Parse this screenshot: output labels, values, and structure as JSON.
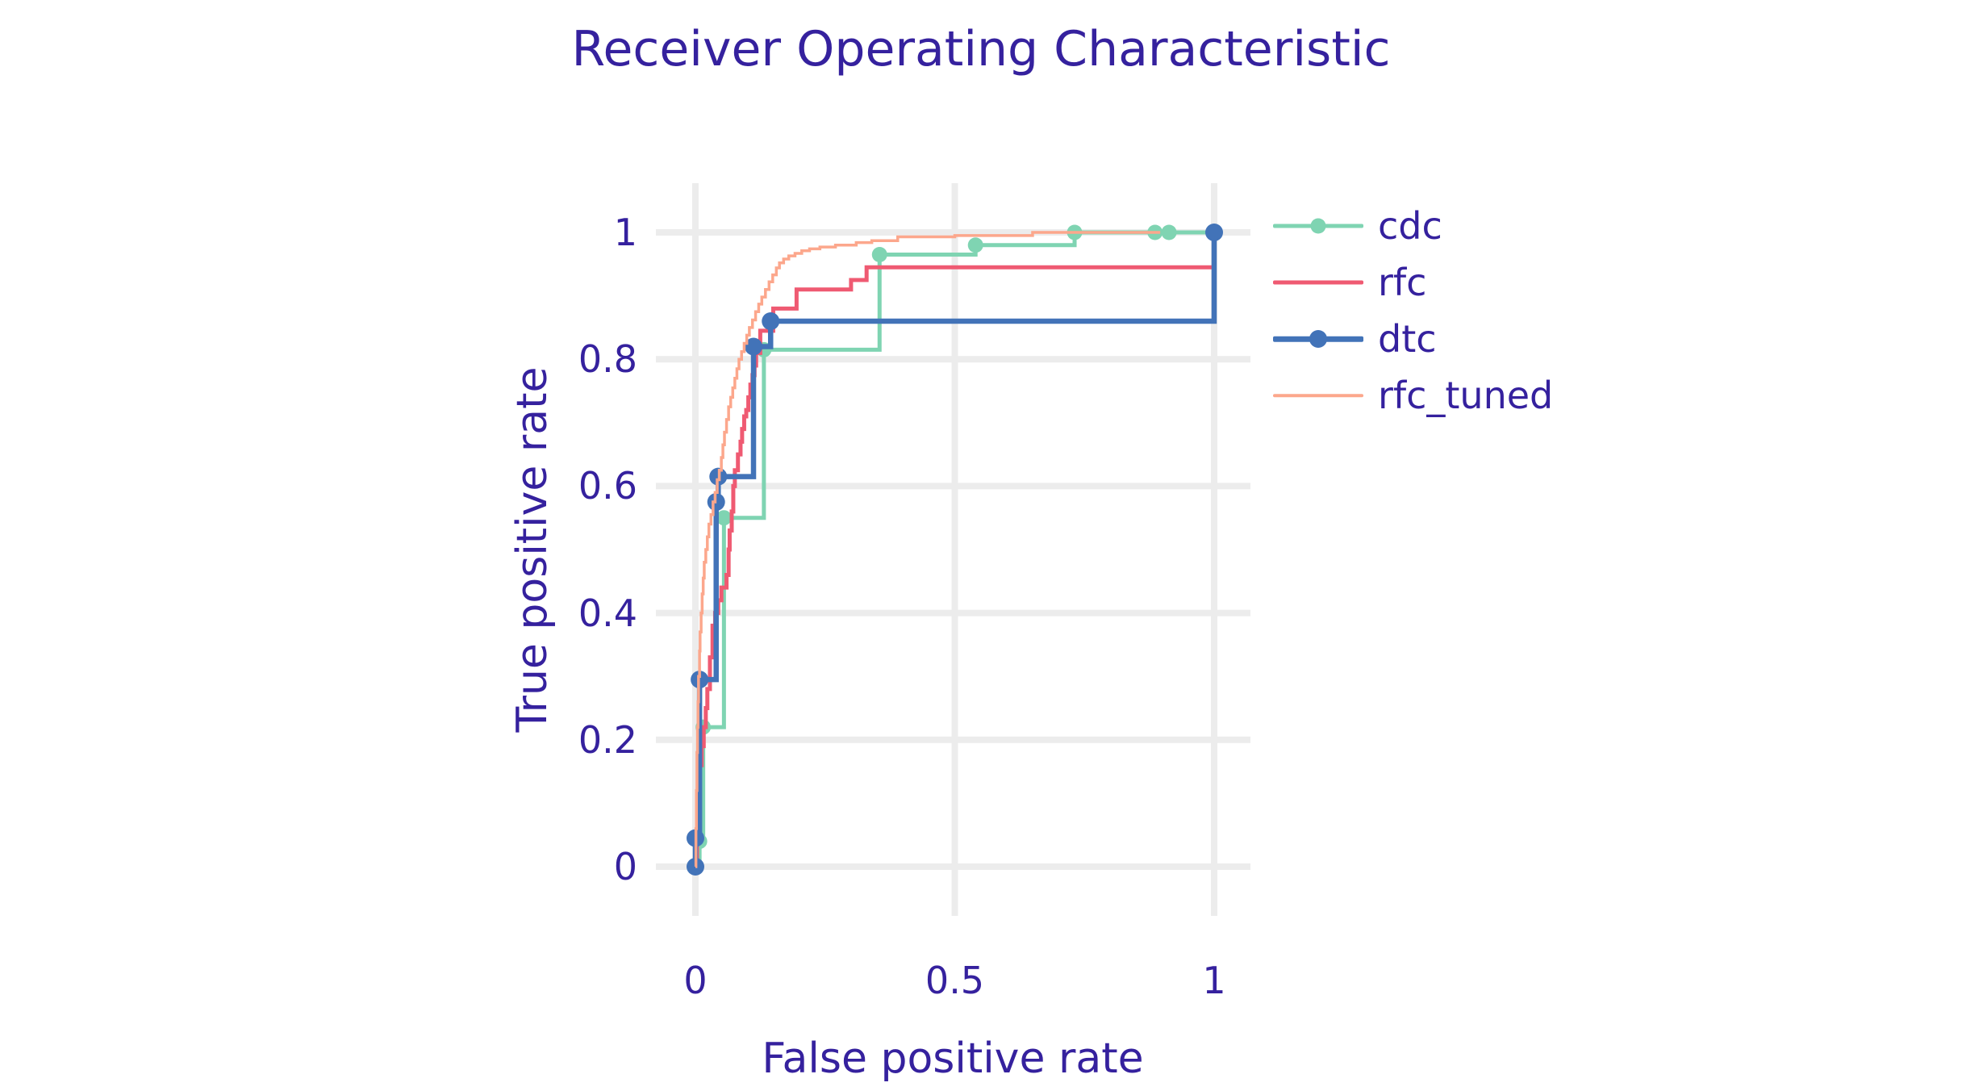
{
  "page": {
    "background": "#ffffff",
    "text_color": "#35219E"
  },
  "chart_data": {
    "type": "line",
    "variant": "roc-step-curves",
    "line_shape": "hv",
    "title": "Receiver Operating Characteristic",
    "xlabel": "False positive rate",
    "ylabel": "True positive rate",
    "xlim": [
      -0.08,
      1.07
    ],
    "ylim": [
      -0.08,
      1.08
    ],
    "grid": true,
    "grid_color": "#ECECEC",
    "background": "#ffffff",
    "legend_position": "right-top",
    "xticks": [
      {
        "value": 0,
        "label": "0"
      },
      {
        "value": 0.5,
        "label": "0.5"
      },
      {
        "value": 1,
        "label": "1"
      }
    ],
    "yticks": [
      {
        "value": 0,
        "label": "0"
      },
      {
        "value": 0.2,
        "label": "0.2"
      },
      {
        "value": 0.4,
        "label": "0.4"
      },
      {
        "value": 0.6,
        "label": "0.6"
      },
      {
        "value": 0.8,
        "label": "0.8"
      },
      {
        "value": 1,
        "label": "1"
      }
    ],
    "series": [
      {
        "name": "cdc",
        "color": "#7FD4B2",
        "line_width": 5,
        "markers": true,
        "marker_size": 9.5,
        "points": [
          [
            0,
            0
          ],
          [
            0.008,
            0.04
          ],
          [
            0.015,
            0.22
          ],
          [
            0.055,
            0.55
          ],
          [
            0.132,
            0.815
          ],
          [
            0.355,
            0.965
          ],
          [
            0.54,
            0.98
          ],
          [
            0.731,
            1.0
          ],
          [
            0.886,
            1.0
          ],
          [
            0.913,
            1.0
          ],
          [
            1,
            1
          ]
        ]
      },
      {
        "name": "rfc",
        "color": "#EF5A72",
        "line_width": 5,
        "markers": false,
        "marker_size": 0,
        "points": [
          [
            0,
            0
          ],
          [
            0.003,
            0.05
          ],
          [
            0.005,
            0.12
          ],
          [
            0.008,
            0.16
          ],
          [
            0.012,
            0.19
          ],
          [
            0.016,
            0.22
          ],
          [
            0.02,
            0.25
          ],
          [
            0.023,
            0.28
          ],
          [
            0.028,
            0.33
          ],
          [
            0.033,
            0.38
          ],
          [
            0.038,
            0.4
          ],
          [
            0.044,
            0.42
          ],
          [
            0.05,
            0.44
          ],
          [
            0.06,
            0.46
          ],
          [
            0.064,
            0.5
          ],
          [
            0.066,
            0.53
          ],
          [
            0.07,
            0.56
          ],
          [
            0.073,
            0.6
          ],
          [
            0.076,
            0.625
          ],
          [
            0.082,
            0.65
          ],
          [
            0.087,
            0.67
          ],
          [
            0.09,
            0.69
          ],
          [
            0.094,
            0.71
          ],
          [
            0.098,
            0.72
          ],
          [
            0.102,
            0.74
          ],
          [
            0.106,
            0.76
          ],
          [
            0.11,
            0.775
          ],
          [
            0.114,
            0.79
          ],
          [
            0.117,
            0.81
          ],
          [
            0.125,
            0.845
          ],
          [
            0.15,
            0.88
          ],
          [
            0.195,
            0.91
          ],
          [
            0.3,
            0.925
          ],
          [
            0.33,
            0.945
          ],
          [
            1,
            0.945
          ],
          [
            1,
            1
          ]
        ]
      },
      {
        "name": "dtc",
        "color": "#4273B8",
        "line_width": 6.5,
        "markers": true,
        "marker_size": 11,
        "points": [
          [
            0,
            0
          ],
          [
            0,
            0.045
          ],
          [
            0.008,
            0.295
          ],
          [
            0.04,
            0.575
          ],
          [
            0.044,
            0.615
          ],
          [
            0.112,
            0.82
          ],
          [
            0.145,
            0.86
          ],
          [
            1,
            1
          ]
        ]
      },
      {
        "name": "rfc_tuned",
        "color": "#FCA78C",
        "line_width": 3.5,
        "markers": false,
        "marker_size": 0,
        "points": [
          [
            0,
            0
          ],
          [
            0.001,
            0.06
          ],
          [
            0.002,
            0.12
          ],
          [
            0.003,
            0.18
          ],
          [
            0.004,
            0.22
          ],
          [
            0.005,
            0.26
          ],
          [
            0.006,
            0.3
          ],
          [
            0.008,
            0.34
          ],
          [
            0.009,
            0.37
          ],
          [
            0.011,
            0.4
          ],
          [
            0.013,
            0.43
          ],
          [
            0.015,
            0.455
          ],
          [
            0.017,
            0.48
          ],
          [
            0.02,
            0.5
          ],
          [
            0.023,
            0.52
          ],
          [
            0.026,
            0.54
          ],
          [
            0.03,
            0.555
          ],
          [
            0.034,
            0.575
          ],
          [
            0.038,
            0.59
          ],
          [
            0.042,
            0.61
          ],
          [
            0.046,
            0.625
          ],
          [
            0.05,
            0.645
          ],
          [
            0.053,
            0.665
          ],
          [
            0.056,
            0.685
          ],
          [
            0.06,
            0.705
          ],
          [
            0.064,
            0.725
          ],
          [
            0.068,
            0.74
          ],
          [
            0.072,
            0.755
          ],
          [
            0.076,
            0.77
          ],
          [
            0.08,
            0.785
          ],
          [
            0.084,
            0.8
          ],
          [
            0.089,
            0.812
          ],
          [
            0.094,
            0.825
          ],
          [
            0.099,
            0.838
          ],
          [
            0.104,
            0.85
          ],
          [
            0.11,
            0.862
          ],
          [
            0.116,
            0.875
          ],
          [
            0.122,
            0.887
          ],
          [
            0.128,
            0.898
          ],
          [
            0.135,
            0.91
          ],
          [
            0.142,
            0.922
          ],
          [
            0.149,
            0.933
          ],
          [
            0.156,
            0.944
          ],
          [
            0.162,
            0.952
          ],
          [
            0.17,
            0.958
          ],
          [
            0.18,
            0.963
          ],
          [
            0.192,
            0.967
          ],
          [
            0.205,
            0.971
          ],
          [
            0.22,
            0.974
          ],
          [
            0.24,
            0.977
          ],
          [
            0.27,
            0.98
          ],
          [
            0.31,
            0.984
          ],
          [
            0.34,
            0.987
          ],
          [
            0.39,
            0.993
          ],
          [
            0.5,
            0.995
          ],
          [
            0.65,
            1.0
          ],
          [
            0.896,
            1.0
          ]
        ]
      }
    ],
    "legend": {
      "items": [
        {
          "label": "cdc"
        },
        {
          "label": "rfc"
        },
        {
          "label": "dtc"
        },
        {
          "label": "rfc_tuned"
        }
      ]
    }
  }
}
